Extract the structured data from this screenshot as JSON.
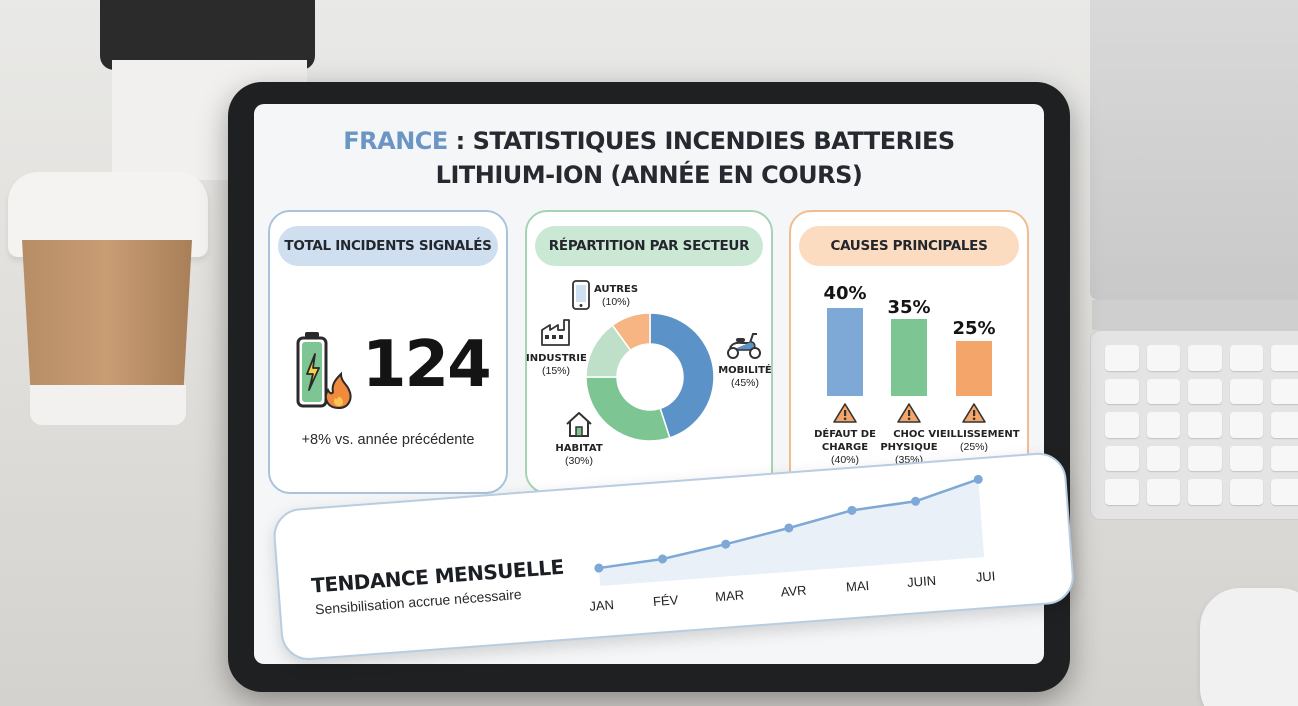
{
  "title": {
    "accent": "FRANCE",
    "line1": " : STATISTIQUES INCENDIES BATTERIES",
    "line2": "LITHIUM-ION (ANNÉE EN COURS)"
  },
  "total_card": {
    "heading": "TOTAL INCIDENTS SIGNALÉS",
    "value": "124",
    "change": "+8% vs. année précédente",
    "icon": "battery-fire-icon"
  },
  "sector_card": {
    "heading": "RÉPARTITION PAR SECTEUR",
    "segments": [
      {
        "name": "MOBILITÉ",
        "pct": "(45%)",
        "value": 45,
        "color": "#5b93c9",
        "icon": "scooter-icon"
      },
      {
        "name": "HABITAT",
        "pct": "(30%)",
        "value": 30,
        "color": "#7dc592",
        "icon": "house-icon"
      },
      {
        "name": "INDUSTRIE",
        "pct": "(15%)",
        "value": 15,
        "color": "#bfe0c8",
        "icon": "factory-icon"
      },
      {
        "name": "AUTRES",
        "pct": "(10%)",
        "value": 10,
        "color": "#f7b583",
        "icon": "phone-icon"
      }
    ]
  },
  "causes_card": {
    "heading": "CAUSES PRINCIPALES",
    "items": [
      {
        "pct_label": "40%",
        "value": 40,
        "line1": "DÉFAUT DE",
        "line2": "CHARGE",
        "sub": "(40%)",
        "color": "#7ea8d6"
      },
      {
        "pct_label": "35%",
        "value": 35,
        "line1": "CHOC",
        "line2": "PHYSIQUE",
        "sub": "(35%)",
        "color": "#7dc592"
      },
      {
        "pct_label": "25%",
        "value": 25,
        "line1": "VIEILLISSEMENT",
        "line2": "",
        "sub": "(25%)",
        "color": "#f4a569"
      }
    ]
  },
  "trend": {
    "title": "TENDANCE MENSUELLE",
    "subtitle": "Sensibilisation accrue nécessaire",
    "months": [
      "JAN",
      "FÉV",
      "MAR",
      "AVR",
      "MAI",
      "JUIN",
      "JUI"
    ],
    "values": [
      1.0,
      1.3,
      2.0,
      2.8,
      3.7,
      4.0,
      5.2
    ],
    "line_color": "#7ea8d6"
  },
  "colors": {
    "accent_blue": "#6b95c4",
    "green": "#7dc592",
    "orange": "#f4a569"
  }
}
